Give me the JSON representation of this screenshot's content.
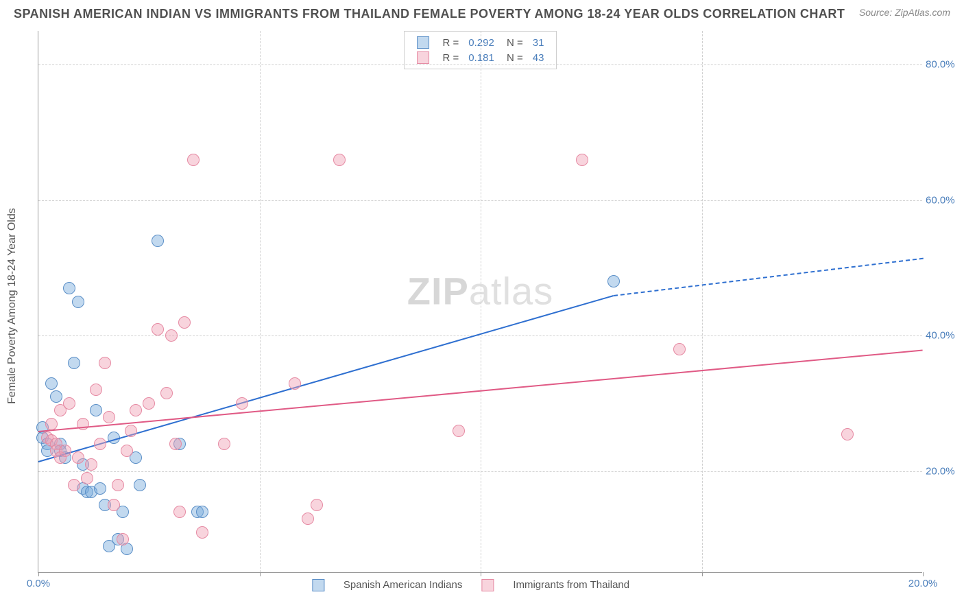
{
  "title": "SPANISH AMERICAN INDIAN VS IMMIGRANTS FROM THAILAND FEMALE POVERTY AMONG 18-24 YEAR OLDS CORRELATION CHART",
  "source": "Source: ZipAtlas.com",
  "ylabel": "Female Poverty Among 18-24 Year Olds",
  "watermark_bold": "ZIP",
  "watermark_rest": "atlas",
  "chart": {
    "type": "scatter",
    "background_color": "#ffffff",
    "grid_color": "#d0d0d0",
    "axis_color": "#999999",
    "xlim": [
      0,
      20
    ],
    "ylim": [
      5,
      85
    ],
    "x_ticks": [
      0,
      5,
      10,
      15,
      20
    ],
    "x_tick_labels": [
      "0.0%",
      "",
      "",
      "",
      "20.0%"
    ],
    "y_ticks": [
      20,
      40,
      60,
      80
    ],
    "y_tick_labels": [
      "20.0%",
      "40.0%",
      "60.0%",
      "80.0%"
    ],
    "tick_label_color": "#4a7ebb",
    "marker_radius": 9,
    "marker_border_width": 1.5,
    "series": [
      {
        "id": "series-a",
        "label": "Spanish American Indians",
        "fill_color": "rgba(120,170,220,0.45)",
        "border_color": "#5b8fc7",
        "line_color": "#2e6fd0",
        "R": "0.292",
        "N": "31",
        "trend": {
          "x1": 0,
          "y1": 21.5,
          "x2": 13.0,
          "y2": 46.0,
          "dash_x2": 20,
          "dash_y2": 51.5
        },
        "points": [
          [
            0.1,
            26.5
          ],
          [
            0.1,
            25.0
          ],
          [
            0.2,
            24.0
          ],
          [
            0.2,
            23.0
          ],
          [
            0.3,
            33.0
          ],
          [
            0.4,
            31.0
          ],
          [
            0.5,
            24.0
          ],
          [
            0.5,
            23.0
          ],
          [
            0.6,
            22.0
          ],
          [
            0.7,
            47.0
          ],
          [
            0.8,
            36.0
          ],
          [
            0.9,
            45.0
          ],
          [
            1.0,
            21.0
          ],
          [
            1.0,
            17.5
          ],
          [
            1.1,
            17.0
          ],
          [
            1.2,
            17.0
          ],
          [
            1.3,
            29.0
          ],
          [
            1.4,
            17.5
          ],
          [
            1.5,
            15.0
          ],
          [
            1.6,
            9.0
          ],
          [
            1.7,
            25.0
          ],
          [
            1.8,
            10.0
          ],
          [
            1.9,
            14.0
          ],
          [
            2.0,
            8.5
          ],
          [
            2.2,
            22.0
          ],
          [
            2.3,
            18.0
          ],
          [
            2.7,
            54.0
          ],
          [
            3.2,
            24.0
          ],
          [
            3.6,
            14.0
          ],
          [
            3.7,
            14.0
          ],
          [
            13.0,
            48.0
          ]
        ]
      },
      {
        "id": "series-b",
        "label": "Immigrants from Thailand",
        "fill_color": "rgba(240,160,180,0.45)",
        "border_color": "#e68aa3",
        "line_color": "#e05a85",
        "R": "0.181",
        "N": "43",
        "trend": {
          "x1": 0,
          "y1": 26.0,
          "x2": 20,
          "y2": 38.0
        },
        "points": [
          [
            0.2,
            25.0
          ],
          [
            0.3,
            27.0
          ],
          [
            0.3,
            24.5
          ],
          [
            0.4,
            24.0
          ],
          [
            0.4,
            23.0
          ],
          [
            0.5,
            29.0
          ],
          [
            0.5,
            22.0
          ],
          [
            0.6,
            23.0
          ],
          [
            0.7,
            30.0
          ],
          [
            0.8,
            18.0
          ],
          [
            0.9,
            22.0
          ],
          [
            1.0,
            27.0
          ],
          [
            1.1,
            19.0
          ],
          [
            1.2,
            21.0
          ],
          [
            1.3,
            32.0
          ],
          [
            1.4,
            24.0
          ],
          [
            1.5,
            36.0
          ],
          [
            1.6,
            28.0
          ],
          [
            1.7,
            15.0
          ],
          [
            1.8,
            18.0
          ],
          [
            1.9,
            10.0
          ],
          [
            2.0,
            23.0
          ],
          [
            2.1,
            26.0
          ],
          [
            2.2,
            29.0
          ],
          [
            2.5,
            30.0
          ],
          [
            2.7,
            41.0
          ],
          [
            2.9,
            31.5
          ],
          [
            3.0,
            40.0
          ],
          [
            3.1,
            24.0
          ],
          [
            3.2,
            14.0
          ],
          [
            3.3,
            42.0
          ],
          [
            3.5,
            66.0
          ],
          [
            3.7,
            11.0
          ],
          [
            4.2,
            24.0
          ],
          [
            4.6,
            30.0
          ],
          [
            5.8,
            33.0
          ],
          [
            6.3,
            15.0
          ],
          [
            6.1,
            13.0
          ],
          [
            6.8,
            66.0
          ],
          [
            9.5,
            26.0
          ],
          [
            12.3,
            66.0
          ],
          [
            14.5,
            38.0
          ],
          [
            18.3,
            25.5
          ]
        ]
      }
    ],
    "stat_legend": {
      "columns": [
        "swatch",
        "R =",
        "value",
        "N =",
        "count"
      ]
    },
    "bottom_legend_labels": [
      "Spanish American Indians",
      "Immigrants from Thailand"
    ]
  }
}
